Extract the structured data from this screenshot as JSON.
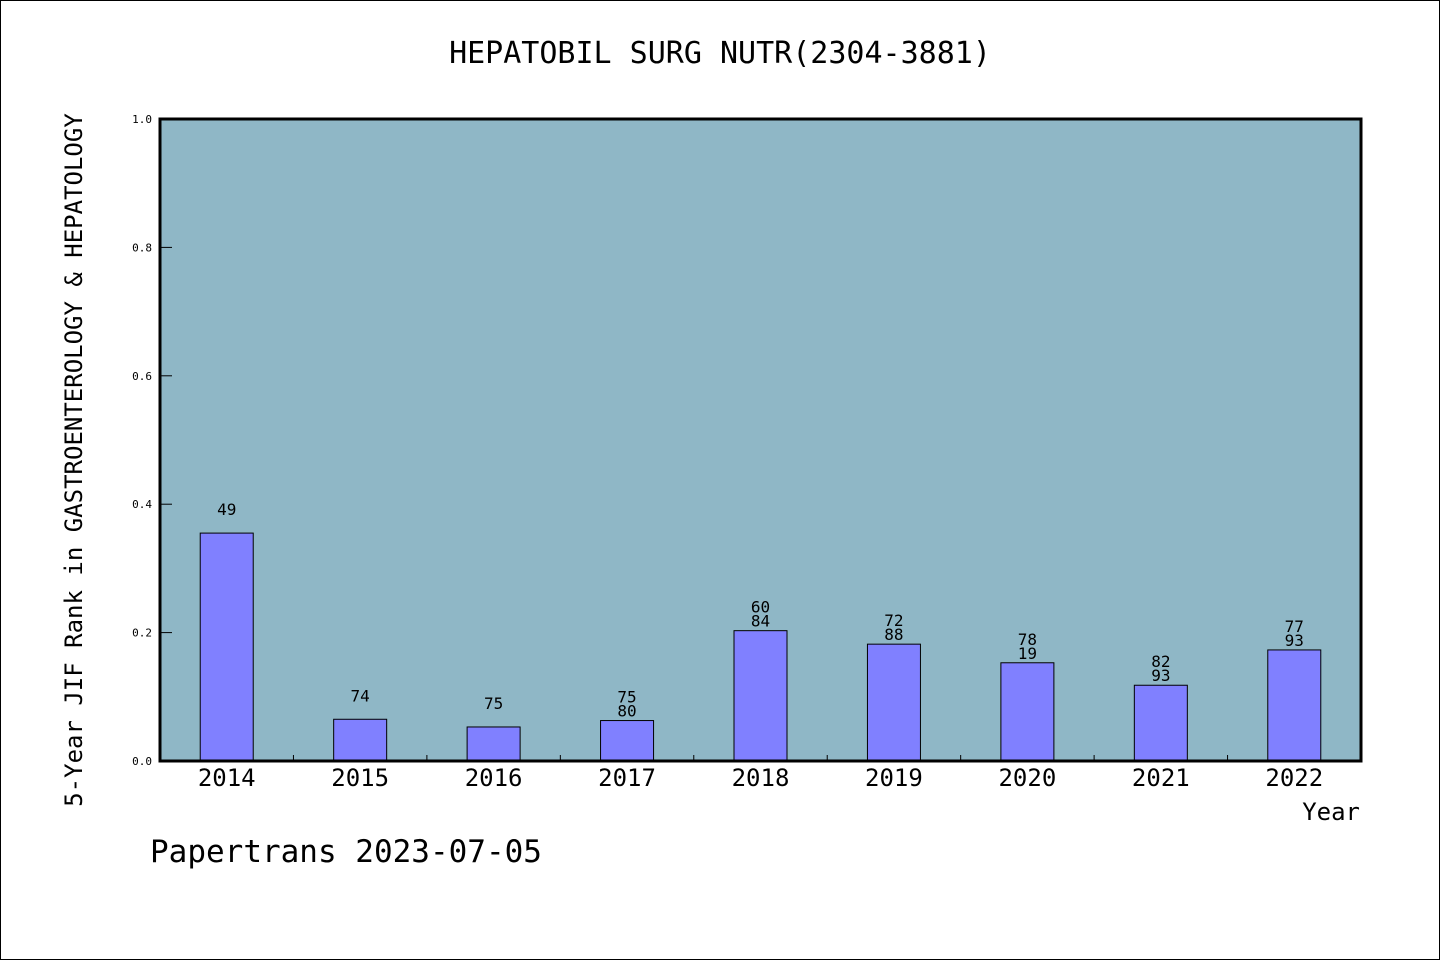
{
  "chart_data": {
    "type": "bar",
    "title": "HEPATOBIL SURG NUTR(2304-3881)",
    "xlabel": "Year",
    "ylabel": "5-Year JIF Rank in GASTROENTEROLOGY & HEPATOLOGY",
    "ylim": [
      0.0,
      1.0
    ],
    "yticks": [
      "0.0",
      "0.2",
      "0.4",
      "0.6",
      "0.8",
      "1.0"
    ],
    "categories": [
      "2014",
      "2015",
      "2016",
      "2017",
      "2018",
      "2019",
      "2020",
      "2021",
      "2022"
    ],
    "values": [
      0.355,
      0.065,
      0.053,
      0.063,
      0.203,
      0.182,
      0.153,
      0.118,
      0.173
    ],
    "labels": [
      [
        "49"
      ],
      [
        "74"
      ],
      [
        "75"
      ],
      [
        "75",
        "80"
      ],
      [
        "60",
        "84"
      ],
      [
        "72",
        "88"
      ],
      [
        "78",
        "19"
      ],
      [
        "82",
        "93"
      ],
      [
        "77",
        "93"
      ]
    ],
    "plot_background": "#8fb7c6",
    "bar_color": "#8080ff",
    "grid": false
  },
  "footer": "Papertrans 2023-07-05"
}
